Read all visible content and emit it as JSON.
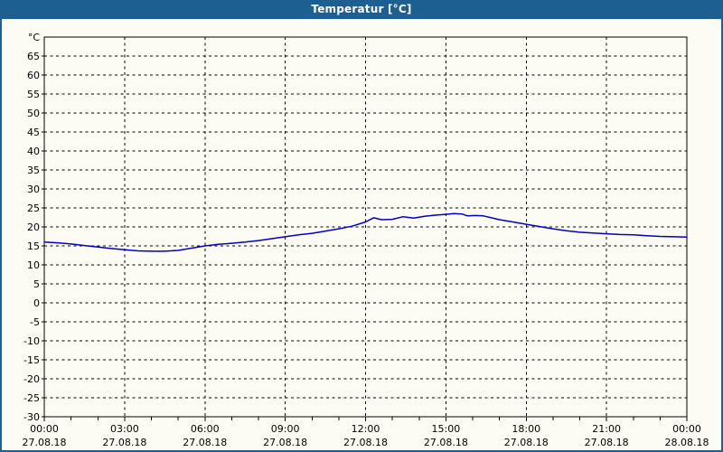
{
  "window": {
    "title": "Temperatur [°C]"
  },
  "colors": {
    "titlebar_bg": "#1e5f92",
    "title_text": "#ffffff",
    "frame_border": "#1e5f92",
    "background": "#fcfcf4",
    "line": "#0000c8",
    "grid": "#000000",
    "axis": "#000000"
  },
  "chart_data": {
    "type": "line",
    "title": "Temperatur [°C]",
    "ylabel": "°C",
    "xlabel": "",
    "ylim": [
      -30,
      70
    ],
    "xlim_hours": [
      0,
      24
    ],
    "grid": "dashed",
    "legend_position": "none",
    "y_ticks": [
      65,
      60,
      55,
      50,
      45,
      40,
      35,
      30,
      25,
      20,
      15,
      10,
      5,
      0,
      -5,
      -10,
      -15,
      -20,
      -25,
      -30
    ],
    "x_ticks": [
      {
        "hour": 0,
        "time": "00:00",
        "date": "27.08.18"
      },
      {
        "hour": 3,
        "time": "03:00",
        "date": "27.08.18"
      },
      {
        "hour": 6,
        "time": "06:00",
        "date": "27.08.18"
      },
      {
        "hour": 9,
        "time": "09:00",
        "date": "27.08.18"
      },
      {
        "hour": 12,
        "time": "12:00",
        "date": "27.08.18"
      },
      {
        "hour": 15,
        "time": "15:00",
        "date": "27.08.18"
      },
      {
        "hour": 18,
        "time": "18:00",
        "date": "27.08.18"
      },
      {
        "hour": 21,
        "time": "21:00",
        "date": "27.08.18"
      },
      {
        "hour": 24,
        "time": "00:00",
        "date": "28.08.18"
      }
    ],
    "minor_tick_every_hours": 1,
    "series": [
      {
        "name": "Temperatur",
        "color": "#0000c8",
        "x_hours": [
          0,
          0.5,
          1,
          1.5,
          2,
          2.5,
          3,
          3.5,
          4,
          4.5,
          5,
          5.5,
          6,
          6.5,
          7,
          7.5,
          8,
          8.5,
          9,
          9.5,
          10,
          10.5,
          11,
          11.5,
          12,
          12.3,
          12.6,
          13,
          13.4,
          13.8,
          14.2,
          14.6,
          15,
          15.3,
          15.6,
          15.8,
          16.1,
          16.4,
          16.7,
          17,
          17.5,
          18,
          18.5,
          19,
          19.5,
          20,
          20.5,
          21,
          21.5,
          22,
          22.5,
          23,
          23.5,
          24
        ],
        "values": [
          16.0,
          15.8,
          15.5,
          15.1,
          14.7,
          14.3,
          14.0,
          13.7,
          13.6,
          13.6,
          13.8,
          14.4,
          15.0,
          15.4,
          15.7,
          16.0,
          16.4,
          16.9,
          17.4,
          17.9,
          18.3,
          18.9,
          19.5,
          20.2,
          21.3,
          22.4,
          21.9,
          22.0,
          22.7,
          22.3,
          22.8,
          23.1,
          23.3,
          23.5,
          23.4,
          22.9,
          23.0,
          22.9,
          22.4,
          21.9,
          21.3,
          20.7,
          20.1,
          19.5,
          19.0,
          18.6,
          18.4,
          18.2,
          18.0,
          17.9,
          17.7,
          17.5,
          17.4,
          17.3
        ]
      }
    ]
  }
}
